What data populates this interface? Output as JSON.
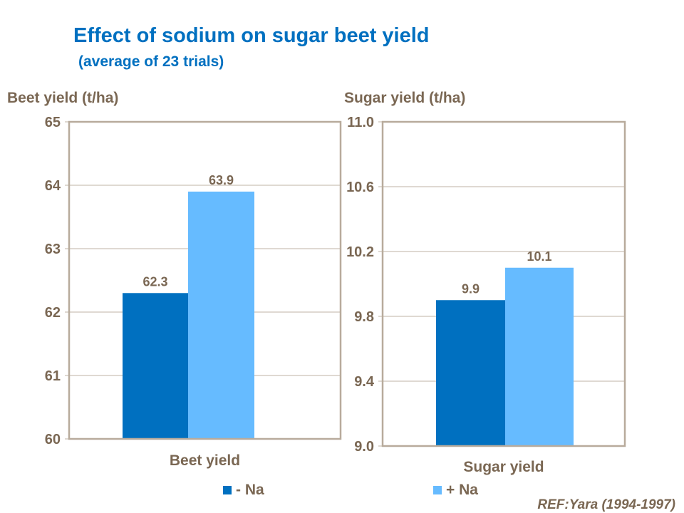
{
  "title": "Effect of sodium on sugar beet yield",
  "subtitle": "(average of 23 trials)",
  "reference": "REF:Yara (1994-1997)",
  "legend": [
    {
      "label": "- Na",
      "color": "#0070C0"
    },
    {
      "label": "+ Na",
      "color": "#66BBFF"
    }
  ],
  "chart_data": [
    {
      "type": "bar",
      "ylabel": "Beet yield (t/ha)",
      "categories": [
        "Beet yield"
      ],
      "series": [
        {
          "name": "- Na",
          "values": [
            62.3
          ],
          "color": "#0070C0"
        },
        {
          "name": "+ Na",
          "values": [
            63.9
          ],
          "color": "#66BBFF"
        }
      ],
      "data_labels": [
        "62.3",
        "63.9"
      ],
      "ylim": [
        60,
        65
      ],
      "yticks": [
        "60",
        "61",
        "62",
        "63",
        "64",
        "65"
      ],
      "grid": true,
      "legend": "bottom"
    },
    {
      "type": "bar",
      "ylabel": "Sugar yield (t/ha)",
      "categories": [
        "Sugar yield"
      ],
      "series": [
        {
          "name": "- Na",
          "values": [
            9.9
          ],
          "color": "#0070C0"
        },
        {
          "name": "+ Na",
          "values": [
            10.1
          ],
          "color": "#66BBFF"
        }
      ],
      "data_labels": [
        "9.9",
        "10.1"
      ],
      "ylim": [
        9.0,
        11.0
      ],
      "yticks": [
        "9.0",
        "9.4",
        "9.8",
        "10.2",
        "10.6",
        "11.0"
      ],
      "grid": true,
      "legend": "bottom"
    }
  ]
}
